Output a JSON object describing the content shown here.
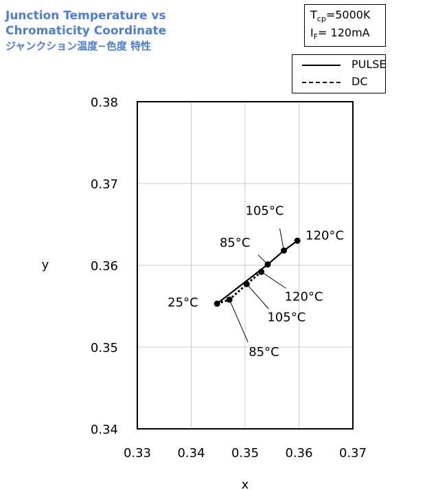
{
  "title": {
    "line1": "Junction Temperature vs",
    "line2": "Chromaticity Coordinate",
    "line3": "ジャンクション温度−色度 特性"
  },
  "conditions": {
    "tcp_symbol": "T",
    "tcp_sub": "cp",
    "tcp_value": "=5000K",
    "if_symbol": "I",
    "if_sub": "F",
    "if_value": "= 120mA"
  },
  "chart_data": {
    "type": "line",
    "title": "Junction Temperature vs Chromaticity Coordinate",
    "xlabel": "x",
    "ylabel": "y",
    "xlim": [
      0.33,
      0.37
    ],
    "ylim": [
      0.34,
      0.38
    ],
    "x_ticks": [
      "0.33",
      "0.34",
      "0.35",
      "0.36",
      "0.37"
    ],
    "y_ticks": [
      "0.34",
      "0.35",
      "0.36",
      "0.37",
      "0.38"
    ],
    "x_tick_values": [
      0.33,
      0.34,
      0.35,
      0.36,
      0.37
    ],
    "y_tick_values": [
      0.34,
      0.35,
      0.36,
      0.37,
      0.38
    ],
    "grid": true,
    "legend_position": "top-right",
    "series": [
      {
        "name": "PULSE",
        "style": "solid",
        "points": [
          {
            "x": 0.3448,
            "y": 0.3553,
            "label": "25°C"
          },
          {
            "x": 0.3542,
            "y": 0.3601,
            "label": "85°C"
          },
          {
            "x": 0.3572,
            "y": 0.3618,
            "label": "105°C"
          },
          {
            "x": 0.3597,
            "y": 0.363,
            "label": "120°C"
          }
        ]
      },
      {
        "name": "DC",
        "style": "dashed",
        "points": [
          {
            "x": 0.3448,
            "y": 0.3553,
            "label": ""
          },
          {
            "x": 0.3471,
            "y": 0.3558,
            "label": "85°C"
          },
          {
            "x": 0.3503,
            "y": 0.3577,
            "label": "105°C"
          },
          {
            "x": 0.353,
            "y": 0.3592,
            "label": "120°C"
          }
        ]
      }
    ]
  },
  "colors": {
    "title": "#4a7de0",
    "grid": "#c8c8c8",
    "line": "#000000"
  }
}
